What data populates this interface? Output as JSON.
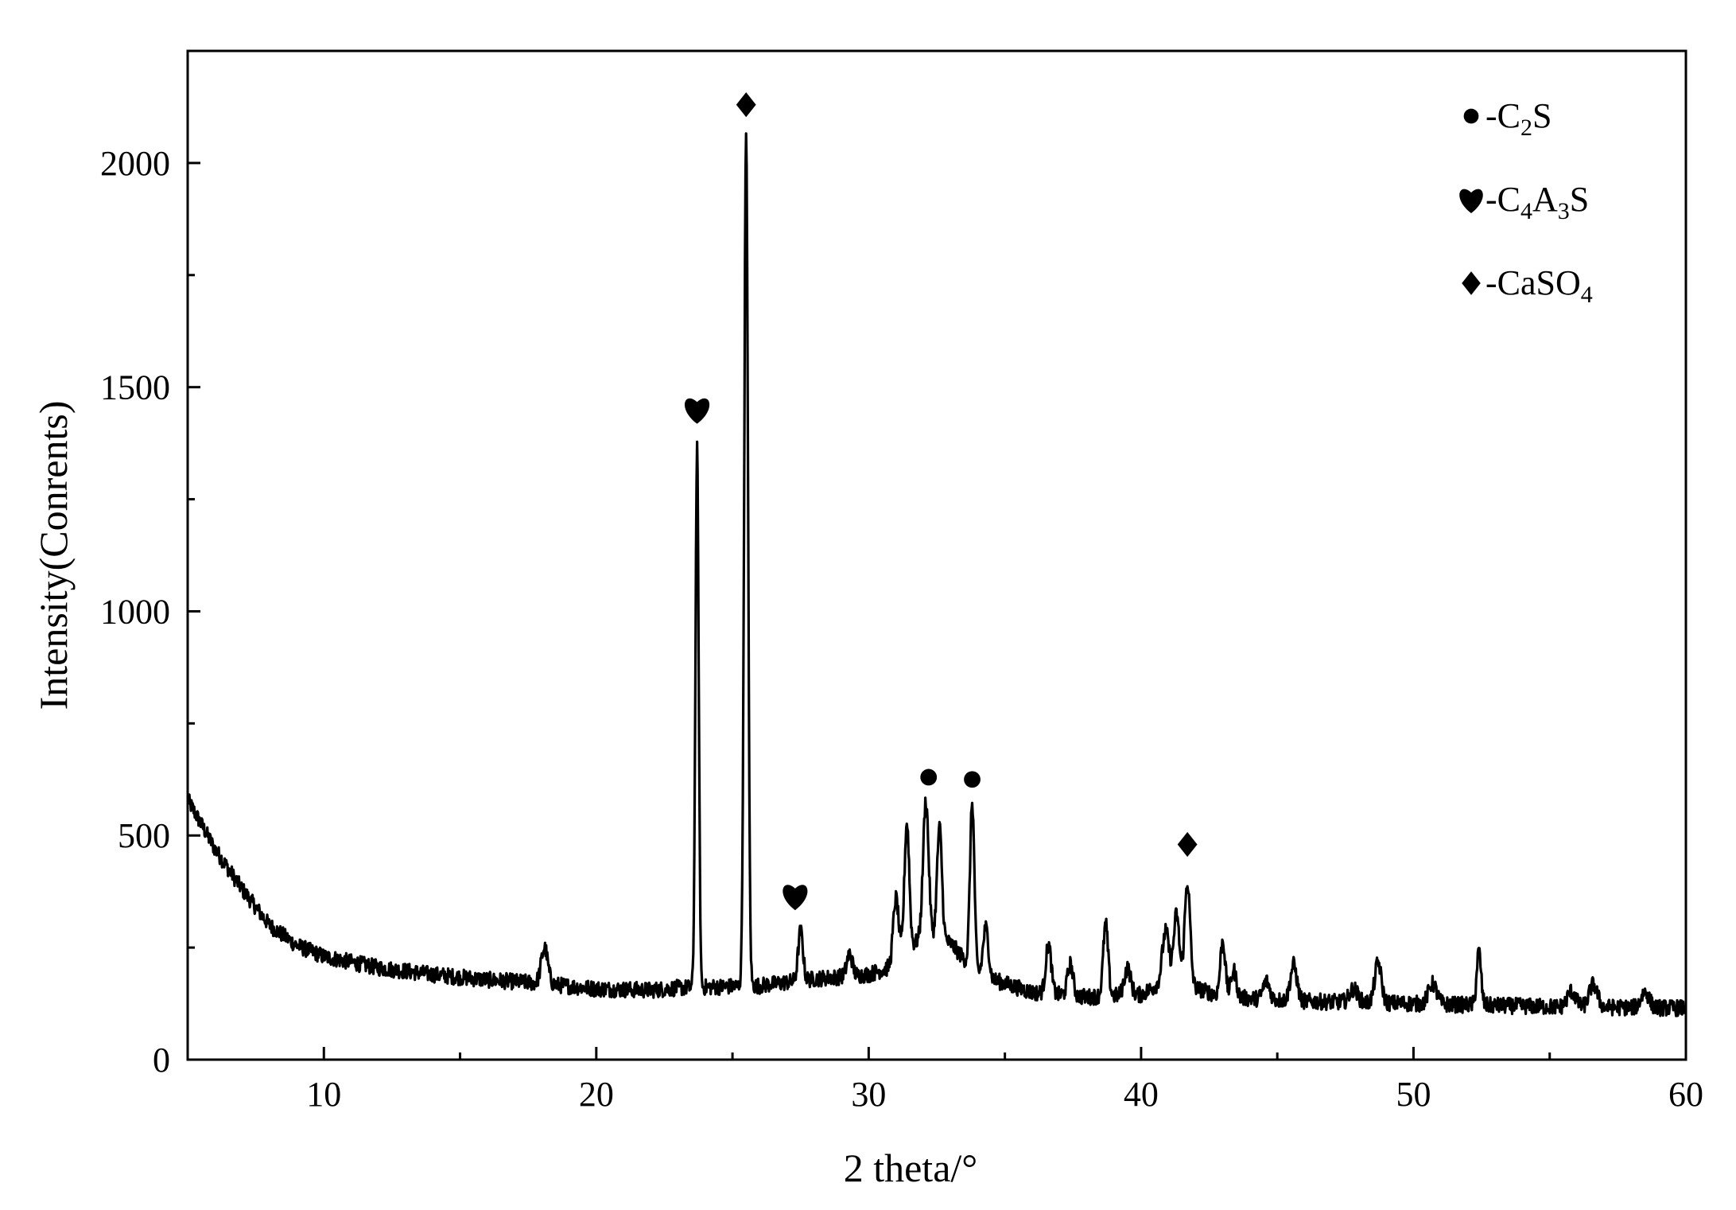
{
  "chart_data": {
    "type": "line",
    "title": "",
    "xlabel": "2 theta/°",
    "ylabel": "Intensity(Conrents)",
    "xlim": [
      5,
      60
    ],
    "ylim": [
      0,
      2250
    ],
    "x_ticks": [
      10,
      20,
      30,
      40,
      50,
      60
    ],
    "y_ticks": [
      0,
      500,
      1000,
      1500,
      2000
    ],
    "x_tick_labels": [
      "10",
      "20",
      "30",
      "40",
      "50",
      "60"
    ],
    "y_tick_labels": [
      "0",
      "500",
      "1000",
      "1500",
      "2000"
    ],
    "grid": false,
    "legend_position": "top-right",
    "legend": [
      {
        "symbol": "circle",
        "label_main": "-C",
        "parts": [
          {
            "t": "-C",
            "sub": false
          },
          {
            "t": "2",
            "sub": true
          },
          {
            "t": "S",
            "sub": false
          }
        ],
        "label": "-C2S"
      },
      {
        "symbol": "heart",
        "label": "-C4A3S",
        "parts": [
          {
            "t": "-C",
            "sub": false
          },
          {
            "t": "4",
            "sub": true
          },
          {
            "t": "A",
            "sub": false
          },
          {
            "t": "3",
            "sub": true
          },
          {
            "t": "S",
            "sub": false
          }
        ]
      },
      {
        "symbol": "diamond",
        "label": "-CaSO4",
        "parts": [
          {
            "t": "-CaSO",
            "sub": false
          },
          {
            "t": "4",
            "sub": true
          }
        ]
      }
    ],
    "series": [
      {
        "background": [
          [
            5,
            580
          ],
          [
            6,
            470
          ],
          [
            7,
            380
          ],
          [
            8,
            300
          ],
          [
            9,
            255
          ],
          [
            10,
            230
          ],
          [
            12,
            205
          ],
          [
            14,
            190
          ],
          [
            16,
            178
          ],
          [
            18,
            170
          ],
          [
            20,
            158
          ],
          [
            22,
            155
          ],
          [
            23,
            160
          ],
          [
            26,
            165
          ],
          [
            28,
            180
          ],
          [
            30,
            190
          ],
          [
            31,
            210
          ],
          [
            32,
            280
          ],
          [
            33,
            260
          ],
          [
            34,
            190
          ],
          [
            36,
            150
          ],
          [
            38,
            140
          ],
          [
            40,
            145
          ],
          [
            41,
            180
          ],
          [
            42,
            160
          ],
          [
            43,
            140
          ],
          [
            46,
            130
          ],
          [
            50,
            125
          ],
          [
            55,
            118
          ],
          [
            60,
            115
          ]
        ],
        "peaks": [
          {
            "x": 18.1,
            "height": 80,
            "width": 0.12
          },
          {
            "x": 23.7,
            "height": 1200,
            "width": 0.06
          },
          {
            "x": 25.5,
            "height": 1890,
            "width": 0.07
          },
          {
            "x": 27.5,
            "height": 110,
            "width": 0.09
          },
          {
            "x": 29.3,
            "height": 50,
            "width": 0.1
          },
          {
            "x": 31.0,
            "height": 150,
            "width": 0.1
          },
          {
            "x": 31.4,
            "height": 290,
            "width": 0.09
          },
          {
            "x": 32.1,
            "height": 300,
            "width": 0.1
          },
          {
            "x": 32.6,
            "height": 250,
            "width": 0.09
          },
          {
            "x": 33.8,
            "height": 370,
            "width": 0.08
          },
          {
            "x": 34.3,
            "height": 110,
            "width": 0.1
          },
          {
            "x": 36.6,
            "height": 110,
            "width": 0.1
          },
          {
            "x": 37.4,
            "height": 70,
            "width": 0.1
          },
          {
            "x": 38.7,
            "height": 160,
            "width": 0.09
          },
          {
            "x": 39.5,
            "height": 60,
            "width": 0.12
          },
          {
            "x": 40.9,
            "height": 110,
            "width": 0.12
          },
          {
            "x": 41.3,
            "height": 150,
            "width": 0.1
          },
          {
            "x": 41.7,
            "height": 230,
            "width": 0.1
          },
          {
            "x": 43.0,
            "height": 125,
            "width": 0.09
          },
          {
            "x": 43.4,
            "height": 60,
            "width": 0.1
          },
          {
            "x": 44.6,
            "height": 40,
            "width": 0.12
          },
          {
            "x": 45.6,
            "height": 80,
            "width": 0.12
          },
          {
            "x": 47.8,
            "height": 30,
            "width": 0.15
          },
          {
            "x": 48.7,
            "height": 90,
            "width": 0.12
          },
          {
            "x": 50.7,
            "height": 45,
            "width": 0.15
          },
          {
            "x": 52.4,
            "height": 120,
            "width": 0.08
          },
          {
            "x": 55.8,
            "height": 35,
            "width": 0.15
          },
          {
            "x": 56.6,
            "height": 50,
            "width": 0.15
          },
          {
            "x": 58.5,
            "height": 35,
            "width": 0.15
          }
        ]
      }
    ],
    "annotations": [
      {
        "symbol": "heart",
        "x": 23.7,
        "y": 1450
      },
      {
        "symbol": "diamond",
        "x": 25.5,
        "y": 2130
      },
      {
        "symbol": "heart",
        "x": 27.3,
        "y": 365
      },
      {
        "symbol": "circle",
        "x": 32.2,
        "y": 630
      },
      {
        "symbol": "circle",
        "x": 33.8,
        "y": 625
      },
      {
        "symbol": "diamond",
        "x": 41.7,
        "y": 480
      }
    ]
  }
}
